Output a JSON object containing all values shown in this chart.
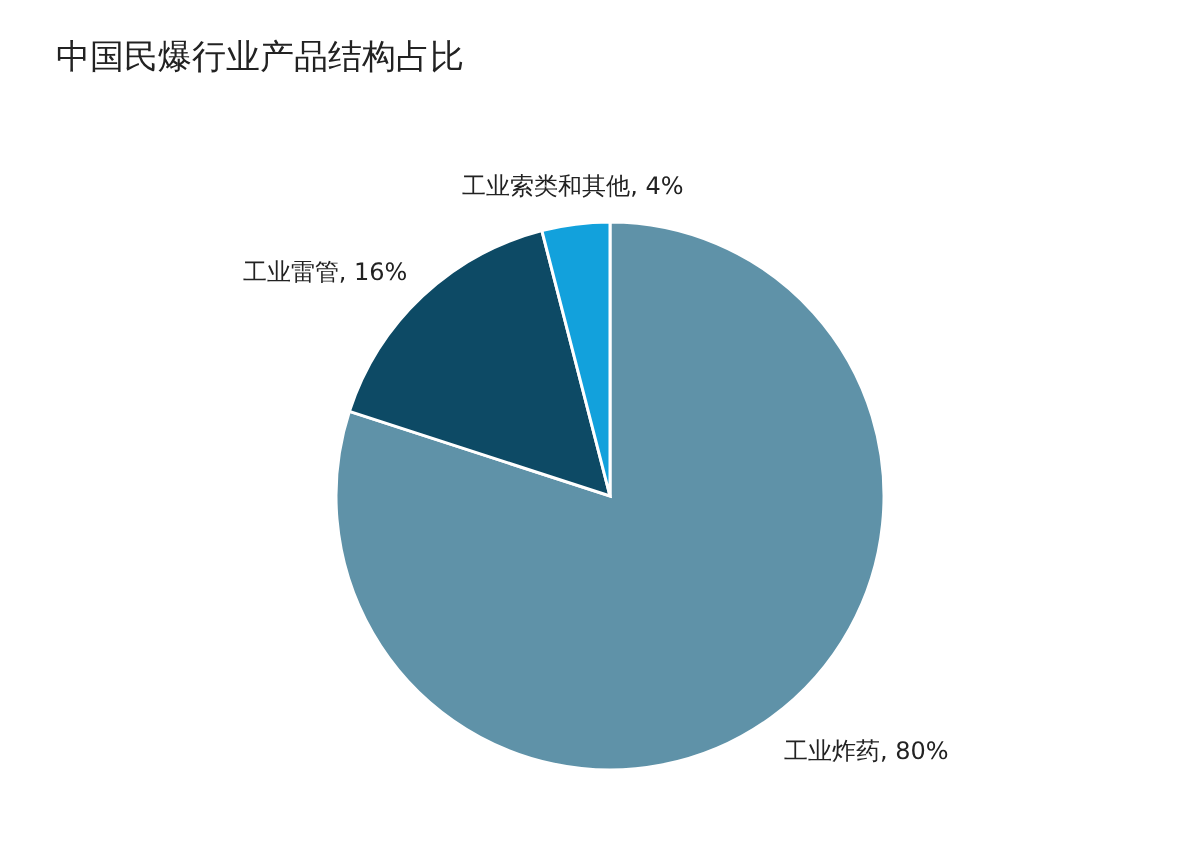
{
  "chart_data": {
    "type": "pie",
    "title": "中国民爆行业产品结构占比",
    "categories": [
      "工业炸药",
      "工业雷管",
      "工业索类和其他"
    ],
    "values": [
      80,
      16,
      4
    ],
    "value_labels": [
      "80%",
      "16%",
      "4%"
    ],
    "colors": [
      "#5f92a8",
      "#0d4a65",
      "#12a1dc"
    ]
  }
}
